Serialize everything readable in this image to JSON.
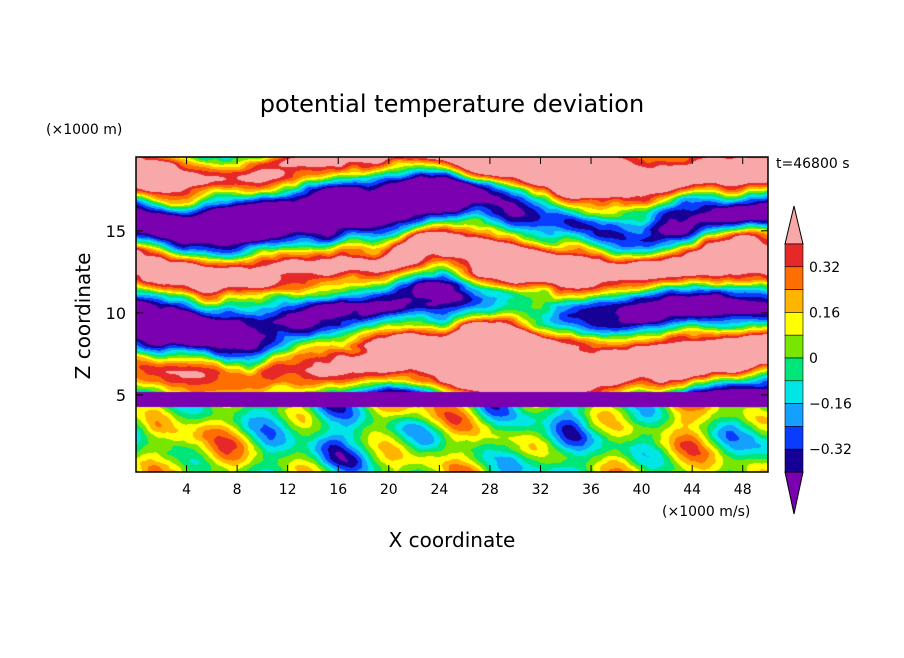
{
  "chart_data": {
    "type": "heatmap",
    "title": "potential temperature deviation",
    "xlabel": "X coordinate",
    "ylabel": "Z coordinate",
    "x_unit": "(×1000 m/s)",
    "y_unit": "(×1000 m)",
    "time_label": "t=46800 s",
    "xlim": [
      0,
      50
    ],
    "ylim": [
      0.3,
      19.5
    ],
    "x_ticks": [
      4,
      8,
      12,
      16,
      20,
      24,
      28,
      32,
      36,
      40,
      44,
      48
    ],
    "y_ticks": [
      5,
      10,
      15
    ],
    "colorbar": {
      "levels": [
        -0.4,
        -0.32,
        -0.24,
        -0.16,
        -0.08,
        0,
        0.08,
        0.16,
        0.24,
        0.32,
        0.4
      ],
      "labeled_ticks": [
        0.32,
        0.16,
        0,
        -0.16,
        -0.32
      ],
      "colors": [
        "#7a00b0",
        "#160096",
        "#0a3cff",
        "#14a0ff",
        "#00e6e6",
        "#00e678",
        "#78e600",
        "#ffff00",
        "#ffb400",
        "#ff6e00",
        "#e62828",
        "#f8a8a8"
      ],
      "extend": "both"
    },
    "field_description": "Filled contour field: upper region (z>5) dominated by alternating extreme positive (pink) and negative (purple) layers; lower region (z<5) shows wave-like structures with moderate values."
  }
}
